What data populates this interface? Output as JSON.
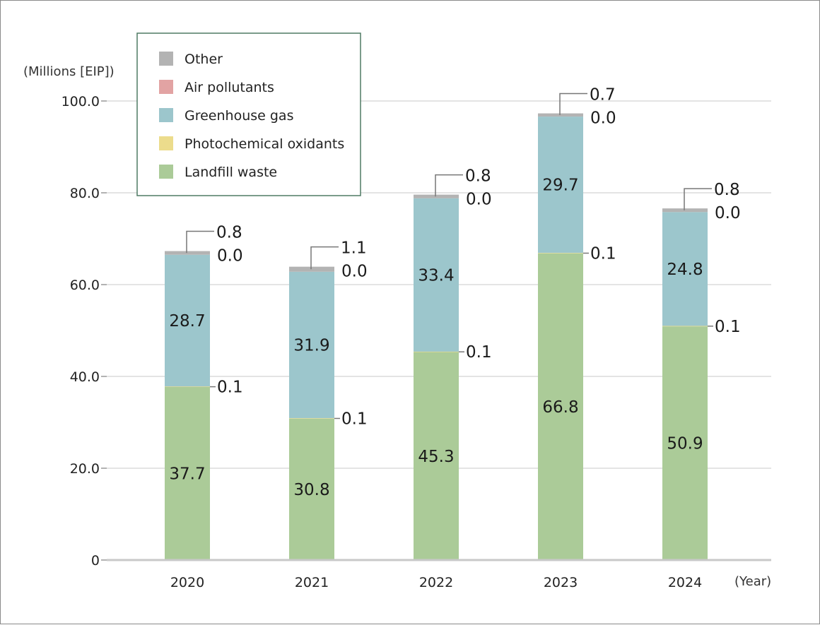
{
  "chart_data": {
    "type": "bar",
    "stacked": true,
    "ylabel": "(Millions [EIP])",
    "xlabel": "(Year)",
    "ylim": [
      0,
      100
    ],
    "y_ticks": [
      "0",
      "20.0",
      "40.0",
      "60.0",
      "80.0",
      "100.0"
    ],
    "categories": [
      "2020",
      "2021",
      "2022",
      "2023",
      "2024"
    ],
    "series": [
      {
        "name": "Landfill waste",
        "color": "#abcb98",
        "values": [
          37.7,
          30.8,
          45.3,
          66.8,
          50.9
        ],
        "labels": [
          "37.7",
          "30.8",
          "45.3",
          "66.8",
          "50.9"
        ]
      },
      {
        "name": "Photochemical oxidants",
        "color": "#ecdc8c",
        "values": [
          0.1,
          0.1,
          0.1,
          0.1,
          0.1
        ],
        "labels": [
          "0.1",
          "0.1",
          "0.1",
          "0.1",
          "0.1"
        ]
      },
      {
        "name": "Greenhouse gas",
        "color": "#9cc6cc",
        "values": [
          28.7,
          31.9,
          33.4,
          29.7,
          24.8
        ],
        "labels": [
          "28.7",
          "31.9",
          "33.4",
          "29.7",
          "24.8"
        ]
      },
      {
        "name": "Air pollutants",
        "color": "#e2a3a3",
        "values": [
          0.0,
          0.0,
          0.0,
          0.0,
          0.0
        ],
        "labels": [
          "0.0",
          "0.0",
          "0.0",
          "0.0",
          "0.0"
        ]
      },
      {
        "name": "Other",
        "color": "#b3b3b3",
        "values": [
          0.8,
          1.1,
          0.8,
          0.7,
          0.8
        ],
        "labels": [
          "0.8",
          "1.1",
          "0.8",
          "0.7",
          "0.8"
        ]
      }
    ],
    "legend_order": [
      "Other",
      "Air pollutants",
      "Greenhouse gas",
      "Photochemical oxidants",
      "Landfill waste"
    ],
    "legend_position": "top-left",
    "grid": true
  }
}
